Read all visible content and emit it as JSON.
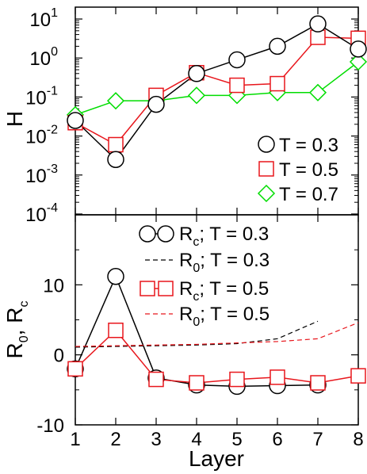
{
  "chart_data": [
    {
      "type": "line",
      "panel": "top",
      "ylabel": "H",
      "yscale": "log",
      "ylim": [
        0.0001,
        10
      ],
      "x": [
        1,
        2,
        3,
        4,
        5,
        6,
        7,
        8
      ],
      "yticks": [
        {
          "base": "10",
          "exp": "1"
        },
        {
          "base": "10",
          "exp": "0"
        },
        {
          "base": "10",
          "exp": "-1"
        },
        {
          "base": "10",
          "exp": "-2"
        },
        {
          "base": "10",
          "exp": "-3"
        },
        {
          "base": "10",
          "exp": "-4"
        }
      ],
      "series": [
        {
          "name": "T = 0.3",
          "color": "#000000",
          "marker": "circle",
          "values": [
            0.025,
            0.0025,
            0.065,
            0.4,
            0.9,
            2.0,
            7.5,
            1.7
          ]
        },
        {
          "name": "T = 0.5",
          "color": "#e8161c",
          "marker": "square",
          "values": [
            0.022,
            0.006,
            0.11,
            0.42,
            0.2,
            0.22,
            3.4,
            3.2
          ]
        },
        {
          "name": "T = 0.7",
          "color": "#00dd00",
          "marker": "diamond",
          "values": [
            0.035,
            0.08,
            0.08,
            0.11,
            0.11,
            0.13,
            0.13,
            0.8
          ]
        }
      ],
      "legend": "bottom-right"
    },
    {
      "type": "line",
      "panel": "bottom",
      "ylabel": "R0, Rc",
      "ylabel_parts": {
        "r1": "R",
        "s1": "0",
        "sep": ", ",
        "r2": "R",
        "s2": "c"
      },
      "xlabel": "Layer",
      "xlim": [
        1,
        8
      ],
      "ylim": [
        -10,
        20
      ],
      "x": [
        1,
        2,
        3,
        4,
        5,
        6,
        7,
        8
      ],
      "xticks": [
        "1",
        "2",
        "3",
        "4",
        "5",
        "6",
        "7",
        "8"
      ],
      "yticks": [
        "10",
        "0",
        "-10"
      ],
      "series": [
        {
          "name_base": "R",
          "name_sub": "c",
          "name_rest": "; T = 0.3",
          "color": "#000000",
          "marker": "circle",
          "dash": false,
          "x": [
            1,
            2,
            3,
            4,
            5,
            6,
            7
          ],
          "values": [
            -2.0,
            11.2,
            -3.3,
            -4.3,
            -4.5,
            -4.4,
            -4.3
          ]
        },
        {
          "name_base": "R",
          "name_sub": "0",
          "name_rest": "; T = 0.3",
          "color": "#000000",
          "marker": "none",
          "dash": true,
          "x": [
            1,
            2,
            3,
            4,
            5,
            6,
            7
          ],
          "values": [
            1.1,
            1.2,
            1.3,
            1.4,
            1.6,
            2.3,
            4.8
          ]
        },
        {
          "name_base": "R",
          "name_sub": "c",
          "name_rest": "; T = 0.5",
          "color": "#e8161c",
          "marker": "square",
          "dash": false,
          "x": [
            1,
            2,
            3,
            4,
            5,
            6,
            7,
            8
          ],
          "values": [
            -2.0,
            3.5,
            -3.5,
            -4.0,
            -3.5,
            -3.2,
            -4.0,
            -3.0
          ]
        },
        {
          "name_base": "R",
          "name_sub": "0",
          "name_rest": "; T = 0.5",
          "color": "#e8161c",
          "marker": "none",
          "dash": true,
          "x": [
            1,
            2,
            3,
            4,
            5,
            6,
            7,
            8
          ],
          "values": [
            1.2,
            1.3,
            1.4,
            1.5,
            1.7,
            1.9,
            2.3,
            4.6
          ]
        }
      ],
      "legend": "top-right"
    }
  ]
}
